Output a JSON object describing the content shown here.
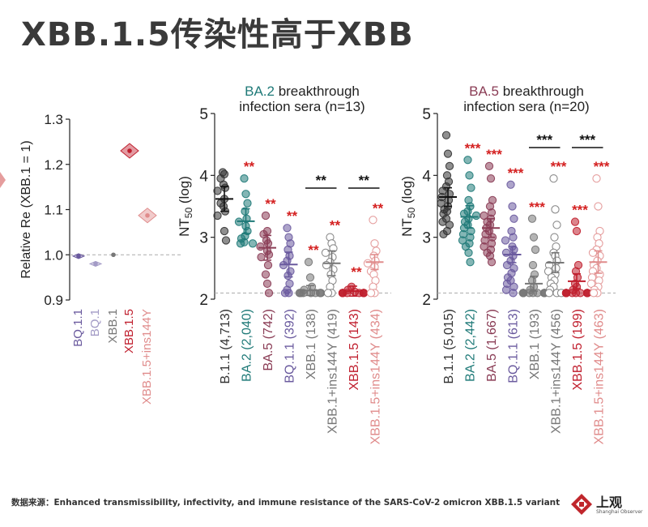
{
  "headline": "XBB.1.5传染性高于XBB",
  "footer": "数据来源：Enhanced transmissibility, infectivity, and immune resistance of the SARS-CoV-2 omicron XBB.1.5 variant",
  "logo": {
    "name": "上观",
    "sub": "Shanghai Observer",
    "color": "#c0262c"
  },
  "colors": {
    "B.1.1": "#333333",
    "BA.2": "#1f7a78",
    "BA.5": "#8a3c55",
    "BQ.1.1": "#6a5a9e",
    "BQ.1": "#a39bc6",
    "XBB.1": "#777777",
    "XBB.1.5": "#c01f2e",
    "XBB.1.5+ins144Y": "#e08c8c",
    "star_red": "#d42020",
    "star_black": "#111111"
  },
  "chart_data": [
    {
      "type": "scatter",
      "title": "",
      "ylabel": "Relative Re (XBB.1 = 1)",
      "ylim": [
        0.9,
        1.3
      ],
      "yticks": [
        "0.9",
        "1.0",
        "1.1",
        "1.2",
        "1.3"
      ],
      "reference_line": 1.0,
      "categories": [
        "BQ.1.1",
        "BQ.1",
        "XBB.1",
        "XBB.1.5",
        "XBB.1.5+ins144Y"
      ],
      "values": [
        0.997,
        0.98,
        1.0,
        1.23,
        1.087
      ]
    },
    {
      "type": "scatter",
      "title": "infection sera (n=13)",
      "title_variant": "BA.2",
      "title_suffix": " breakthrough",
      "ylabel_main": "NT",
      "ylabel_sub": "50",
      "ylabel_tail": " (log)",
      "ylim": [
        2,
        5
      ],
      "yticks": [
        "2",
        "3",
        "4",
        "5"
      ],
      "detection_limit": 2.1,
      "categories": [
        "B.1.1 (4,713)",
        "BA.2 (2,040)",
        "BA.5 (742)",
        "BQ.1.1 (392)",
        "XBB.1 (138)",
        "XBB.1+ins144Y (419)",
        "XBB.1.5 (143)",
        "XBB.1.5+ins144Y (434)"
      ],
      "variants": [
        "B.1.1",
        "BA.2",
        "BA.5",
        "BQ.1.1",
        "XBB.1",
        "XBB.1",
        "XBB.1.5",
        "XBB.1.5+ins144Y"
      ],
      "filled": [
        true,
        true,
        true,
        true,
        true,
        false,
        true,
        false
      ],
      "means": [
        3.62,
        3.26,
        2.83,
        2.56,
        2.14,
        2.58,
        2.13,
        2.6
      ],
      "sems": [
        0.2,
        0.2,
        0.2,
        0.2,
        0.08,
        0.2,
        0.08,
        0.12
      ],
      "points": [
        [
          4.05,
          4.02,
          3.95,
          3.85,
          3.8,
          3.75,
          3.62,
          3.55,
          3.5,
          3.42,
          3.35,
          3.1,
          2.95
        ],
        [
          3.95,
          3.7,
          3.55,
          3.42,
          3.3,
          3.25,
          3.18,
          3.1,
          3.02,
          2.98,
          2.92,
          2.9,
          2.9
        ],
        [
          3.35,
          3.1,
          3.05,
          2.95,
          2.9,
          2.85,
          2.78,
          2.72,
          2.68,
          2.55,
          2.4,
          2.25,
          2.1
        ],
        [
          3.15,
          3.0,
          2.9,
          2.8,
          2.7,
          2.62,
          2.55,
          2.45,
          2.38,
          2.25,
          2.15,
          2.1,
          2.1
        ],
        [
          2.6,
          2.35,
          2.2,
          2.15,
          2.1,
          2.1,
          2.1,
          2.1,
          2.1,
          2.1,
          2.1,
          2.1,
          2.1
        ],
        [
          3.0,
          2.9,
          2.82,
          2.75,
          2.68,
          2.6,
          2.55,
          2.48,
          2.4,
          2.3,
          2.2,
          2.1,
          2.1
        ],
        [
          2.2,
          2.15,
          2.12,
          2.1,
          2.1,
          2.1,
          2.1,
          2.1,
          2.1,
          2.1,
          2.1,
          2.1,
          2.1
        ],
        [
          3.28,
          2.9,
          2.78,
          2.7,
          2.62,
          2.58,
          2.52,
          2.45,
          2.4,
          2.3,
          2.2,
          2.1,
          2.1
        ]
      ],
      "stars": [
        "",
        "**",
        "**",
        "**",
        "**",
        "**",
        "**",
        "**"
      ],
      "brackets": [
        {
          "from": 4,
          "to": 5,
          "label": "**"
        },
        {
          "from": 6,
          "to": 7,
          "label": "**"
        }
      ]
    },
    {
      "type": "scatter",
      "title": "infection sera (n=20)",
      "title_variant": "BA.5",
      "title_suffix": " breakthrough",
      "ylabel_main": "NT",
      "ylabel_sub": "50",
      "ylabel_tail": " (log)",
      "ylim": [
        2,
        5
      ],
      "yticks": [
        "2",
        "3",
        "4",
        "5"
      ],
      "detection_limit": 2.1,
      "categories": [
        "B.1.1 (5,015)",
        "BA.2 (2,442)",
        "BA.5 (1,667)",
        "BQ.1.1 (613)",
        "XBB.1 (193)",
        "XBB.1+ins144Y (456)",
        "XBB.1.5 (199)",
        "XBB.1.5+ins144Y (463)"
      ],
      "variants": [
        "B.1.1",
        "BA.2",
        "BA.5",
        "BQ.1.1",
        "XBB.1",
        "XBB.1",
        "XBB.1.5",
        "XBB.1.5+ins144Y"
      ],
      "filled": [
        true,
        true,
        true,
        true,
        true,
        false,
        true,
        false
      ],
      "means": [
        3.65,
        3.33,
        3.15,
        2.72,
        2.25,
        2.59,
        2.29,
        2.6
      ],
      "sems": [
        0.15,
        0.18,
        0.15,
        0.13,
        0.12,
        0.16,
        0.12,
        0.18
      ],
      "points": [
        [
          4.65,
          4.35,
          4.15,
          4.0,
          3.9,
          3.82,
          3.75,
          3.7,
          3.65,
          3.6,
          3.55,
          3.5,
          3.45,
          3.42,
          3.38,
          3.3,
          3.25,
          3.2,
          3.1,
          3.05
        ],
        [
          4.25,
          4.0,
          3.8,
          3.6,
          3.5,
          3.42,
          3.38,
          3.35,
          3.3,
          3.25,
          3.2,
          3.15,
          3.1,
          3.05,
          3.0,
          2.95,
          2.9,
          2.85,
          2.75,
          2.6
        ],
        [
          4.15,
          3.95,
          3.6,
          3.5,
          3.4,
          3.35,
          3.3,
          3.25,
          3.2,
          3.15,
          3.1,
          3.05,
          3.0,
          2.95,
          2.9,
          2.85,
          2.8,
          2.75,
          2.7,
          2.6
        ],
        [
          3.85,
          3.5,
          3.3,
          3.1,
          3.0,
          2.95,
          2.85,
          2.8,
          2.75,
          2.7,
          2.62,
          2.55,
          2.5,
          2.42,
          2.35,
          2.3,
          2.25,
          2.2,
          2.15,
          2.1
        ],
        [
          3.3,
          3.0,
          2.8,
          2.55,
          2.4,
          2.3,
          2.2,
          2.15,
          2.1,
          2.1,
          2.1,
          2.1,
          2.1,
          2.1,
          2.1,
          2.1,
          2.1,
          2.1,
          2.1,
          2.1
        ],
        [
          3.95,
          3.45,
          3.2,
          3.0,
          2.85,
          2.75,
          2.7,
          2.62,
          2.55,
          2.5,
          2.45,
          2.4,
          2.35,
          2.3,
          2.25,
          2.2,
          2.15,
          2.1,
          2.1,
          2.1
        ],
        [
          3.25,
          3.1,
          2.55,
          2.45,
          2.35,
          2.25,
          2.2,
          2.15,
          2.1,
          2.1,
          2.1,
          2.1,
          2.1,
          2.1,
          2.1,
          2.1,
          2.1,
          2.1,
          2.1,
          2.1
        ],
        [
          3.95,
          3.5,
          3.1,
          3.0,
          2.9,
          2.8,
          2.75,
          2.7,
          2.62,
          2.55,
          2.5,
          2.45,
          2.4,
          2.35,
          2.3,
          2.25,
          2.2,
          2.15,
          2.1,
          2.1
        ]
      ],
      "stars": [
        "",
        "***",
        "***",
        "***",
        "***",
        "***",
        "***",
        "***"
      ],
      "brackets": [
        {
          "from": 4,
          "to": 5,
          "label": "***"
        },
        {
          "from": 6,
          "to": 7,
          "label": "***"
        }
      ]
    }
  ]
}
